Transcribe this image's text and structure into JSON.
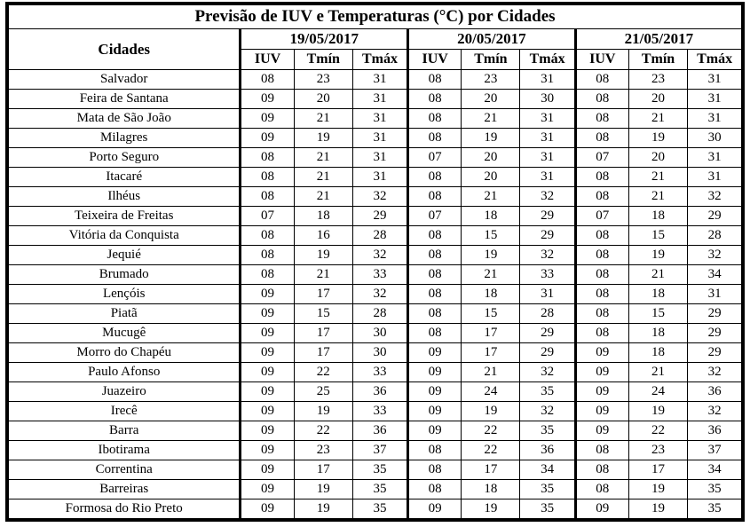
{
  "title": "Previsão de IUV e Temperaturas (°C) por Cidades",
  "table": {
    "city_header": "Cidades",
    "dates": [
      "19/05/2017",
      "20/05/2017",
      "21/05/2017"
    ],
    "subheaders": [
      "IUV",
      "Tmín",
      "Tmáx"
    ],
    "rows": [
      {
        "city": "Salvador",
        "values": [
          "08",
          "23",
          "31",
          "08",
          "23",
          "31",
          "08",
          "23",
          "31"
        ]
      },
      {
        "city": "Feira de Santana",
        "values": [
          "09",
          "20",
          "31",
          "08",
          "20",
          "30",
          "08",
          "20",
          "31"
        ]
      },
      {
        "city": "Mata de São João",
        "values": [
          "09",
          "21",
          "31",
          "08",
          "21",
          "31",
          "08",
          "21",
          "31"
        ]
      },
      {
        "city": "Milagres",
        "values": [
          "09",
          "19",
          "31",
          "08",
          "19",
          "31",
          "08",
          "19",
          "30"
        ]
      },
      {
        "city": "Porto Seguro",
        "values": [
          "08",
          "21",
          "31",
          "07",
          "20",
          "31",
          "07",
          "20",
          "31"
        ]
      },
      {
        "city": "Itacaré",
        "values": [
          "08",
          "21",
          "31",
          "08",
          "20",
          "31",
          "08",
          "21",
          "31"
        ]
      },
      {
        "city": "Ilhéus",
        "values": [
          "08",
          "21",
          "32",
          "08",
          "21",
          "32",
          "08",
          "21",
          "32"
        ]
      },
      {
        "city": "Teixeira de Freitas",
        "values": [
          "07",
          "18",
          "29",
          "07",
          "18",
          "29",
          "07",
          "18",
          "29"
        ]
      },
      {
        "city": "Vitória da Conquista",
        "values": [
          "08",
          "16",
          "28",
          "08",
          "15",
          "29",
          "08",
          "15",
          "28"
        ]
      },
      {
        "city": "Jequié",
        "values": [
          "08",
          "19",
          "32",
          "08",
          "19",
          "32",
          "08",
          "19",
          "32"
        ]
      },
      {
        "city": "Brumado",
        "values": [
          "08",
          "21",
          "33",
          "08",
          "21",
          "33",
          "08",
          "21",
          "34"
        ]
      },
      {
        "city": "Lençóis",
        "values": [
          "09",
          "17",
          "32",
          "08",
          "18",
          "31",
          "08",
          "18",
          "31"
        ]
      },
      {
        "city": "Piatã",
        "values": [
          "09",
          "15",
          "28",
          "08",
          "15",
          "28",
          "08",
          "15",
          "29"
        ]
      },
      {
        "city": "Mucugê",
        "values": [
          "09",
          "17",
          "30",
          "08",
          "17",
          "29",
          "08",
          "18",
          "29"
        ]
      },
      {
        "city": "Morro do Chapéu",
        "values": [
          "09",
          "17",
          "30",
          "09",
          "17",
          "29",
          "09",
          "18",
          "29"
        ]
      },
      {
        "city": "Paulo Afonso",
        "values": [
          "09",
          "22",
          "33",
          "09",
          "21",
          "32",
          "09",
          "21",
          "32"
        ]
      },
      {
        "city": "Juazeiro",
        "values": [
          "09",
          "25",
          "36",
          "09",
          "24",
          "35",
          "09",
          "24",
          "36"
        ]
      },
      {
        "city": "Irecê",
        "values": [
          "09",
          "19",
          "33",
          "09",
          "19",
          "32",
          "09",
          "19",
          "32"
        ]
      },
      {
        "city": "Barra",
        "values": [
          "09",
          "22",
          "36",
          "09",
          "22",
          "35",
          "09",
          "22",
          "36"
        ]
      },
      {
        "city": "Ibotirama",
        "values": [
          "09",
          "23",
          "37",
          "08",
          "22",
          "36",
          "08",
          "23",
          "37"
        ]
      },
      {
        "city": "Correntina",
        "values": [
          "09",
          "17",
          "35",
          "08",
          "17",
          "34",
          "08",
          "17",
          "34"
        ]
      },
      {
        "city": "Barreiras",
        "values": [
          "09",
          "19",
          "35",
          "08",
          "18",
          "35",
          "08",
          "19",
          "35"
        ]
      },
      {
        "city": "Formosa do Rio Preto",
        "values": [
          "09",
          "19",
          "35",
          "09",
          "19",
          "35",
          "09",
          "19",
          "35"
        ]
      }
    ]
  }
}
